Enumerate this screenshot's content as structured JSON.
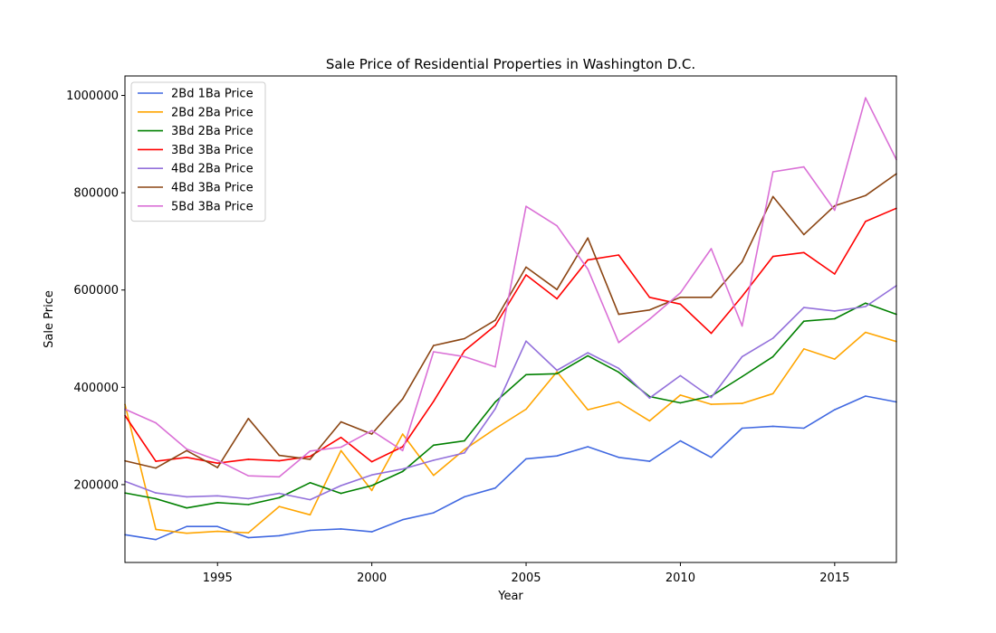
{
  "chart_data": {
    "type": "line",
    "title": "Sale Price of Residential Properties in Washington D.C.",
    "xlabel": "Year",
    "ylabel": "Sale Price",
    "xlim": [
      1992,
      2017
    ],
    "ylim": [
      40000,
      1040000
    ],
    "xticks": [
      1995,
      2000,
      2005,
      2010,
      2015
    ],
    "yticks": [
      200000,
      400000,
      600000,
      800000,
      1000000
    ],
    "legend_position": "top-left",
    "grid": false,
    "x": [
      1992,
      1993,
      1994,
      1995,
      1996,
      1997,
      1998,
      1999,
      2000,
      2001,
      2002,
      2003,
      2004,
      2005,
      2006,
      2007,
      2008,
      2009,
      2010,
      2011,
      2012,
      2013,
      2014,
      2015,
      2016,
      2017
    ],
    "series": [
      {
        "name": "2Bd 1Ba Price",
        "color": "#4169e1",
        "values": [
          97000,
          87000,
          114000,
          114000,
          91000,
          95000,
          106000,
          109000,
          103000,
          128000,
          142000,
          175000,
          193000,
          253000,
          259000,
          278000,
          256000,
          248000,
          290000,
          256000,
          316000,
          320000,
          316000,
          354000,
          382000,
          370000
        ]
      },
      {
        "name": "2Bd 2Ba Price",
        "color": "#ffa500",
        "values": [
          365000,
          108000,
          100000,
          104000,
          101000,
          155000,
          138000,
          270000,
          188000,
          304000,
          219000,
          272000,
          315000,
          355000,
          432000,
          354000,
          370000,
          331000,
          384000,
          365000,
          367000,
          387000,
          479000,
          458000,
          513000,
          494000
        ]
      },
      {
        "name": "3Bd 2Ba Price",
        "color": "#008000",
        "values": [
          183000,
          171000,
          152000,
          163000,
          159000,
          173000,
          204000,
          182000,
          198000,
          227000,
          281000,
          290000,
          370000,
          426000,
          428000,
          465000,
          431000,
          381000,
          368000,
          382000,
          422000,
          463000,
          536000,
          541000,
          573000,
          550000
        ]
      },
      {
        "name": "3Bd 3Ba Price",
        "color": "#ff0000",
        "values": [
          342000,
          248000,
          256000,
          244000,
          252000,
          249000,
          258000,
          297000,
          247000,
          278000,
          371000,
          475000,
          527000,
          631000,
          582000,
          662000,
          672000,
          585000,
          571000,
          511000,
          587000,
          669000,
          677000,
          633000,
          741000,
          768000
        ]
      },
      {
        "name": "4Bd 2Ba Price",
        "color": "#9370db",
        "values": [
          207000,
          183000,
          175000,
          177000,
          171000,
          182000,
          169000,
          198000,
          220000,
          232000,
          250000,
          265000,
          356000,
          495000,
          435000,
          471000,
          439000,
          378000,
          424000,
          379000,
          463000,
          501000,
          564000,
          557000,
          566000,
          609000
        ]
      },
      {
        "name": "4Bd 3Ba Price",
        "color": "#8b4513",
        "values": [
          249000,
          234000,
          270000,
          235000,
          336000,
          260000,
          252000,
          329000,
          304000,
          376000,
          486000,
          500000,
          538000,
          647000,
          601000,
          707000,
          550000,
          559000,
          585000,
          585000,
          658000,
          792000,
          714000,
          773000,
          794000,
          839000
        ]
      },
      {
        "name": "5Bd 3Ba Price",
        "color": "#da70d6",
        "values": [
          355000,
          327000,
          273000,
          250000,
          218000,
          216000,
          269000,
          277000,
          311000,
          270000,
          473000,
          463000,
          442000,
          772000,
          732000,
          643000,
          492000,
          540000,
          594000,
          685000,
          526000,
          843000,
          853000,
          764000,
          995000,
          868000
        ]
      }
    ]
  }
}
